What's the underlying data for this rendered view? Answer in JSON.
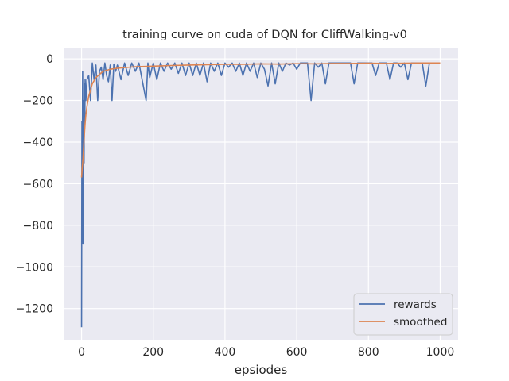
{
  "chart_data": {
    "type": "line",
    "title": "training curve on cuda of DQN for CliffWalking-v0",
    "xlabel": "epsiodes",
    "ylabel": "",
    "xlim": [
      -50,
      1050
    ],
    "ylim": [
      -1350,
      50
    ],
    "xticks": [
      0,
      200,
      400,
      600,
      800,
      1000
    ],
    "xtick_labels": [
      "0",
      "200",
      "400",
      "600",
      "800",
      "1000"
    ],
    "yticks": [
      0,
      -200,
      -400,
      -600,
      -800,
      -1000,
      -1200
    ],
    "ytick_labels": [
      "0",
      "−200",
      "−400",
      "−600",
      "−800",
      "−1000",
      "−1200"
    ],
    "grid": true,
    "legend_position": "bottom-right",
    "series": [
      {
        "name": "rewards",
        "color": "#4c72b0",
        "x": [
          0,
          1,
          2,
          3,
          4,
          5,
          6,
          7,
          8,
          9,
          10,
          12,
          15,
          20,
          25,
          30,
          35,
          40,
          45,
          50,
          55,
          60,
          65,
          70,
          75,
          80,
          85,
          90,
          95,
          100,
          110,
          120,
          130,
          140,
          150,
          160,
          170,
          180,
          185,
          190,
          200,
          210,
          220,
          230,
          240,
          250,
          260,
          270,
          280,
          290,
          300,
          310,
          320,
          330,
          340,
          350,
          360,
          370,
          380,
          390,
          400,
          410,
          420,
          430,
          440,
          450,
          460,
          470,
          480,
          490,
          500,
          510,
          520,
          530,
          540,
          550,
          560,
          570,
          580,
          590,
          600,
          610,
          620,
          630,
          640,
          650,
          660,
          670,
          680,
          690,
          700,
          710,
          720,
          730,
          740,
          750,
          760,
          770,
          780,
          790,
          800,
          810,
          820,
          830,
          840,
          850,
          860,
          870,
          880,
          890,
          900,
          910,
          920,
          930,
          940,
          950,
          960,
          970,
          980,
          990,
          1000
        ],
        "values": [
          -1290,
          -300,
          -560,
          -60,
          -890,
          -500,
          -200,
          -500,
          -120,
          -300,
          -100,
          -200,
          -100,
          -80,
          -200,
          -20,
          -100,
          -30,
          -200,
          -60,
          -40,
          -100,
          -20,
          -80,
          -110,
          -30,
          -200,
          -25,
          -60,
          -30,
          -100,
          -20,
          -80,
          -20,
          -60,
          -20,
          -110,
          -200,
          -20,
          -90,
          -20,
          -100,
          -20,
          -60,
          -20,
          -50,
          -20,
          -70,
          -20,
          -80,
          -20,
          -80,
          -20,
          -80,
          -20,
          -110,
          -20,
          -60,
          -20,
          -80,
          -20,
          -40,
          -20,
          -60,
          -20,
          -80,
          -20,
          -60,
          -20,
          -90,
          -20,
          -50,
          -130,
          -20,
          -120,
          -20,
          -60,
          -20,
          -30,
          -20,
          -50,
          -20,
          -20,
          -20,
          -200,
          -20,
          -40,
          -20,
          -120,
          -20,
          -20,
          -20,
          -20,
          -20,
          -20,
          -20,
          -120,
          -20,
          -20,
          -20,
          -20,
          -20,
          -80,
          -20,
          -20,
          -20,
          -100,
          -20,
          -20,
          -40,
          -20,
          -100,
          -20,
          -20,
          -20,
          -20,
          -130,
          -20,
          -20,
          -20,
          -20
        ]
      },
      {
        "name": "smoothed",
        "color": "#dd8452",
        "x": [
          0,
          2,
          4,
          6,
          8,
          10,
          12,
          15,
          20,
          25,
          30,
          40,
          50,
          60,
          80,
          100,
          120,
          150,
          200,
          250,
          300,
          350,
          400,
          450,
          500,
          550,
          600,
          650,
          700,
          750,
          800,
          850,
          900,
          950,
          1000
        ],
        "values": [
          -570,
          -520,
          -480,
          -420,
          -360,
          -310,
          -270,
          -230,
          -180,
          -150,
          -120,
          -90,
          -75,
          -60,
          -50,
          -45,
          -42,
          -38,
          -35,
          -32,
          -30,
          -28,
          -26,
          -26,
          -24,
          -25,
          -23,
          -24,
          -22,
          -22,
          -21,
          -22,
          -21,
          -20,
          -20
        ]
      }
    ]
  }
}
